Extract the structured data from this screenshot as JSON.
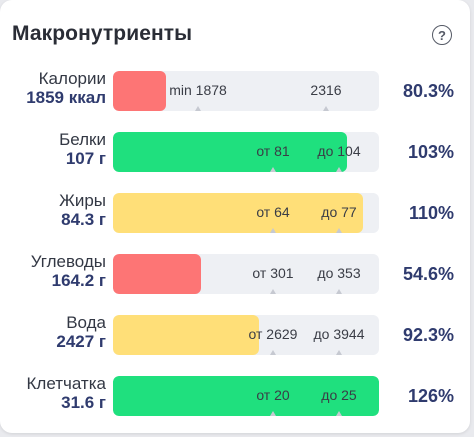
{
  "header": {
    "title": "Макронутриенты",
    "help_icon": "question-circle-icon",
    "help_glyph": "?"
  },
  "colors": {
    "red": "#fd7575",
    "green": "#1fe07e",
    "yellow": "#ffdf78",
    "track": "#eef0f4",
    "value": "#2f3b6e"
  },
  "rows": [
    {
      "key": "calories",
      "name": "Калории",
      "amount": "1859 ккал",
      "percent": "80.3%",
      "status": "red",
      "fill_fraction": 0.2,
      "markers": [
        {
          "label": "min 1878",
          "position": 0.32
        },
        {
          "label": "2316",
          "position": 0.8
        }
      ]
    },
    {
      "key": "protein",
      "name": "Белки",
      "amount": "107 г",
      "percent": "103%",
      "status": "green",
      "fill_fraction": 0.88,
      "markers": [
        {
          "label": "от 81",
          "position": 0.6
        },
        {
          "label": "до 104",
          "position": 0.85
        }
      ]
    },
    {
      "key": "fat",
      "name": "Жиры",
      "amount": "84.3 г",
      "percent": "110%",
      "status": "yellow",
      "fill_fraction": 0.94,
      "markers": [
        {
          "label": "от 64",
          "position": 0.6
        },
        {
          "label": "до 77",
          "position": 0.85
        }
      ]
    },
    {
      "key": "carbs",
      "name": "Углеводы",
      "amount": "164.2 г",
      "percent": "54.6%",
      "status": "red",
      "fill_fraction": 0.33,
      "markers": [
        {
          "label": "от 301",
          "position": 0.6
        },
        {
          "label": "до 353",
          "position": 0.85
        }
      ]
    },
    {
      "key": "water",
      "name": "Вода",
      "amount": "2427 г",
      "percent": "92.3%",
      "status": "yellow",
      "fill_fraction": 0.55,
      "markers": [
        {
          "label": "от 2629",
          "position": 0.6
        },
        {
          "label": "до 3944",
          "position": 0.85
        }
      ]
    },
    {
      "key": "fiber",
      "name": "Клетчатка",
      "amount": "31.6 г",
      "percent": "126%",
      "status": "green",
      "fill_fraction": 1.0,
      "markers": [
        {
          "label": "от 20",
          "position": 0.6
        },
        {
          "label": "до 25",
          "position": 0.85
        }
      ]
    }
  ]
}
